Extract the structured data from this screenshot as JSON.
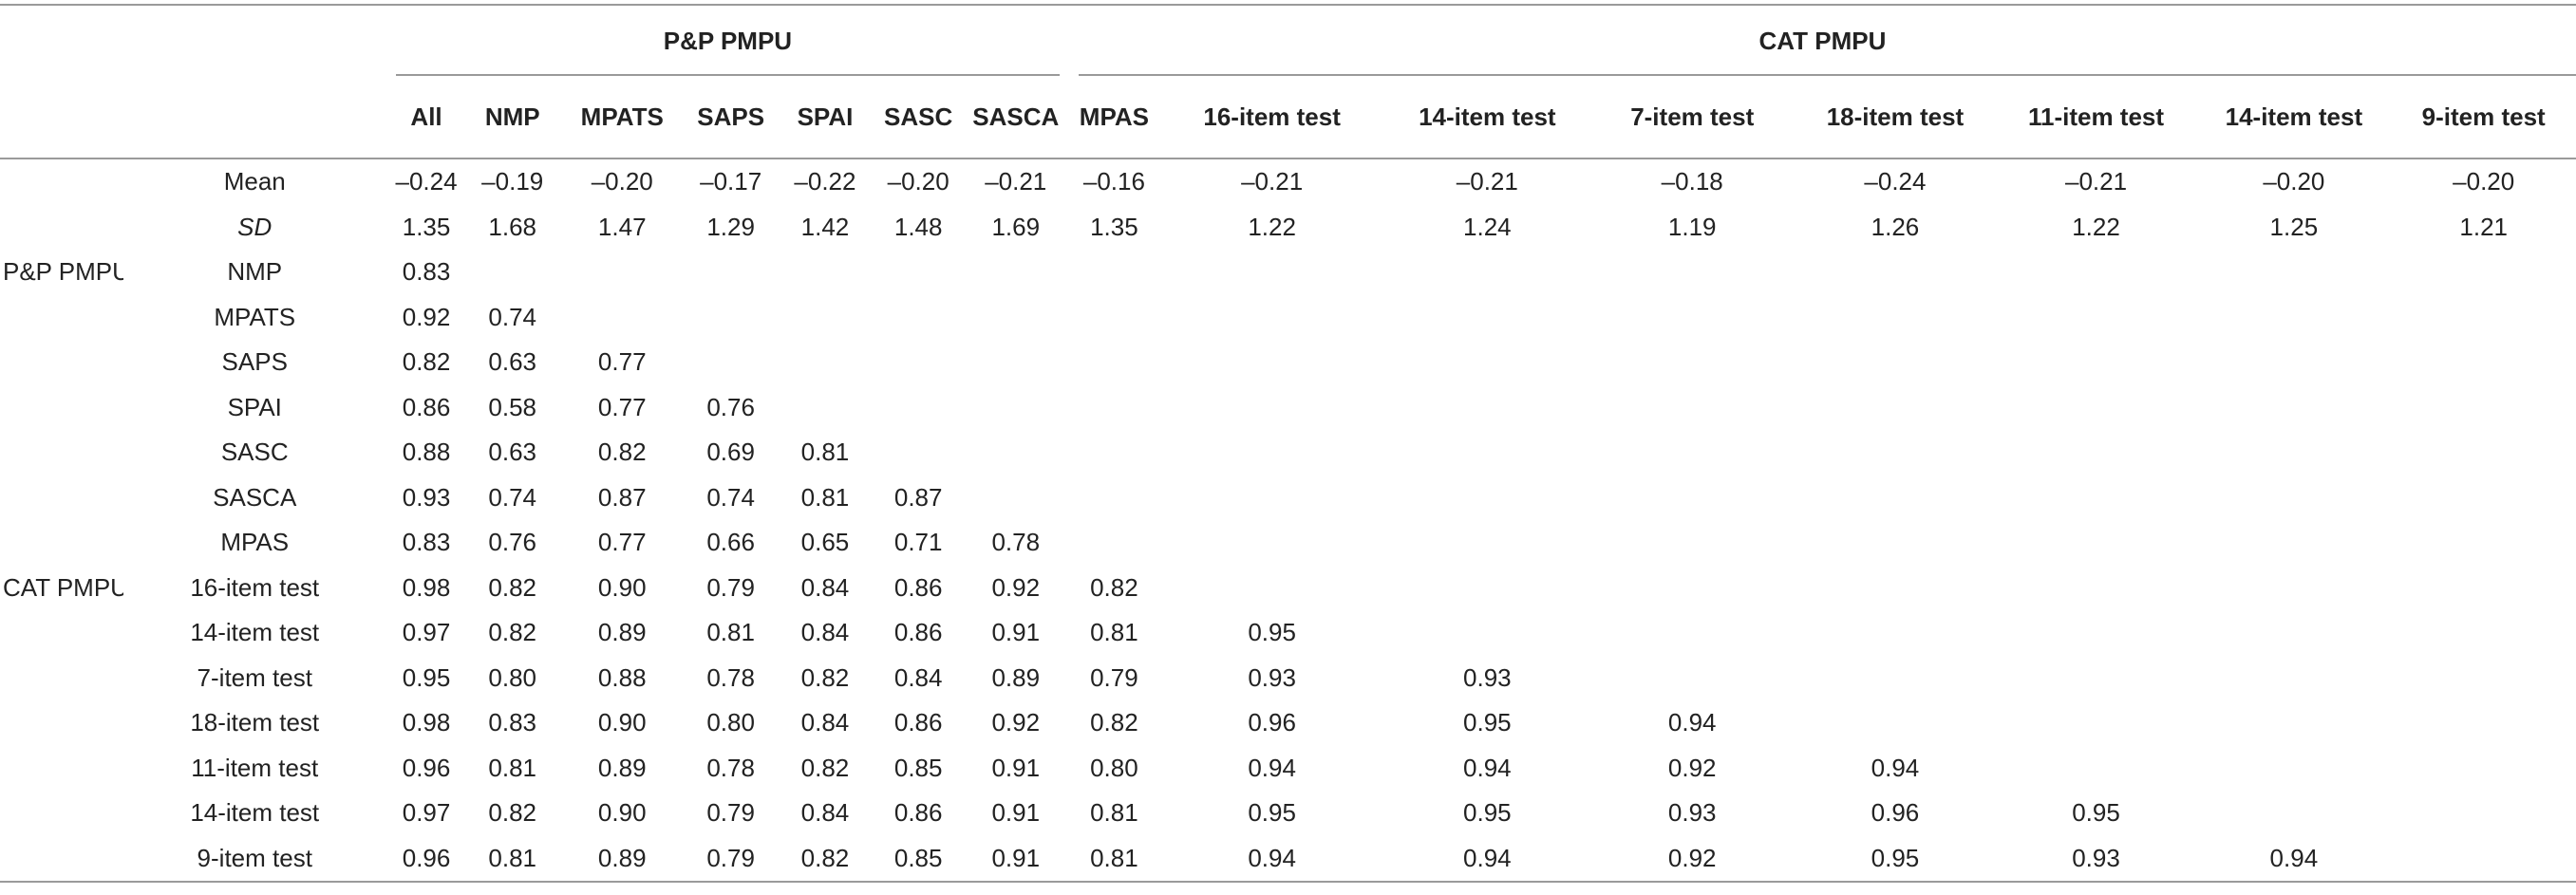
{
  "groups": {
    "pp": "P&P PMPU",
    "cat": "CAT PMPU"
  },
  "columns": [
    "All",
    "NMP",
    "MPATS",
    "SAPS",
    "SPAI",
    "SASC",
    "SASCA",
    "MPAS",
    "16-item test",
    "14-item test",
    "7-item test",
    "18-item test",
    "11-item test",
    "14-item test",
    "9-item test"
  ],
  "rows": [
    {
      "section": "",
      "label": "Mean",
      "italic": false,
      "cells": [
        "–0.24",
        "–0.19",
        "–0.20",
        "–0.17",
        "–0.22",
        "–0.20",
        "–0.21",
        "–0.16",
        "–0.21",
        "–0.21",
        "–0.18",
        "–0.24",
        "–0.21",
        "–0.20",
        "–0.20"
      ]
    },
    {
      "section": "",
      "label": "SD",
      "italic": true,
      "cells": [
        "1.35",
        "1.68",
        "1.47",
        "1.29",
        "1.42",
        "1.48",
        "1.69",
        "1.35",
        "1.22",
        "1.24",
        "1.19",
        "1.26",
        "1.22",
        "1.25",
        "1.21"
      ]
    },
    {
      "section": "P&P PMPU",
      "label": "NMP",
      "italic": false,
      "cells": [
        "0.83",
        "",
        "",
        "",
        "",
        "",
        "",
        "",
        "",
        "",
        "",
        "",
        "",
        "",
        ""
      ]
    },
    {
      "section": "",
      "label": "MPATS",
      "italic": false,
      "cells": [
        "0.92",
        "0.74",
        "",
        "",
        "",
        "",
        "",
        "",
        "",
        "",
        "",
        "",
        "",
        "",
        ""
      ]
    },
    {
      "section": "",
      "label": "SAPS",
      "italic": false,
      "cells": [
        "0.82",
        "0.63",
        "0.77",
        "",
        "",
        "",
        "",
        "",
        "",
        "",
        "",
        "",
        "",
        "",
        ""
      ]
    },
    {
      "section": "",
      "label": "SPAI",
      "italic": false,
      "cells": [
        "0.86",
        "0.58",
        "0.77",
        "0.76",
        "",
        "",
        "",
        "",
        "",
        "",
        "",
        "",
        "",
        "",
        ""
      ]
    },
    {
      "section": "",
      "label": "SASC",
      "italic": false,
      "cells": [
        "0.88",
        "0.63",
        "0.82",
        "0.69",
        "0.81",
        "",
        "",
        "",
        "",
        "",
        "",
        "",
        "",
        "",
        ""
      ]
    },
    {
      "section": "",
      "label": "SASCA",
      "italic": false,
      "cells": [
        "0.93",
        "0.74",
        "0.87",
        "0.74",
        "0.81",
        "0.87",
        "",
        "",
        "",
        "",
        "",
        "",
        "",
        "",
        ""
      ]
    },
    {
      "section": "",
      "label": "MPAS",
      "italic": false,
      "cells": [
        "0.83",
        "0.76",
        "0.77",
        "0.66",
        "0.65",
        "0.71",
        "0.78",
        "",
        "",
        "",
        "",
        "",
        "",
        "",
        ""
      ]
    },
    {
      "section": "CAT PMPU",
      "label": "16-item test",
      "italic": false,
      "cells": [
        "0.98",
        "0.82",
        "0.90",
        "0.79",
        "0.84",
        "0.86",
        "0.92",
        "0.82",
        "",
        "",
        "",
        "",
        "",
        "",
        ""
      ]
    },
    {
      "section": "",
      "label": "14-item test",
      "italic": false,
      "cells": [
        "0.97",
        "0.82",
        "0.89",
        "0.81",
        "0.84",
        "0.86",
        "0.91",
        "0.81",
        "0.95",
        "",
        "",
        "",
        "",
        "",
        ""
      ]
    },
    {
      "section": "",
      "label": "7-item test",
      "italic": false,
      "cells": [
        "0.95",
        "0.80",
        "0.88",
        "0.78",
        "0.82",
        "0.84",
        "0.89",
        "0.79",
        "0.93",
        "0.93",
        "",
        "",
        "",
        "",
        ""
      ]
    },
    {
      "section": "",
      "label": "18-item test",
      "italic": false,
      "cells": [
        "0.98",
        "0.83",
        "0.90",
        "0.80",
        "0.84",
        "0.86",
        "0.92",
        "0.82",
        "0.96",
        "0.95",
        "0.94",
        "",
        "",
        "",
        ""
      ]
    },
    {
      "section": "",
      "label": "11-item test",
      "italic": false,
      "cells": [
        "0.96",
        "0.81",
        "0.89",
        "0.78",
        "0.82",
        "0.85",
        "0.91",
        "0.80",
        "0.94",
        "0.94",
        "0.92",
        "0.94",
        "",
        "",
        ""
      ]
    },
    {
      "section": "",
      "label": "14-item test",
      "italic": false,
      "cells": [
        "0.97",
        "0.82",
        "0.90",
        "0.79",
        "0.84",
        "0.86",
        "0.91",
        "0.81",
        "0.95",
        "0.95",
        "0.93",
        "0.96",
        "0.95",
        "",
        ""
      ]
    },
    {
      "section": "",
      "label": "9-item test",
      "italic": false,
      "cells": [
        "0.96",
        "0.81",
        "0.89",
        "0.79",
        "0.82",
        "0.85",
        "0.91",
        "0.81",
        "0.94",
        "0.94",
        "0.92",
        "0.95",
        "0.93",
        "0.94",
        ""
      ]
    }
  ]
}
